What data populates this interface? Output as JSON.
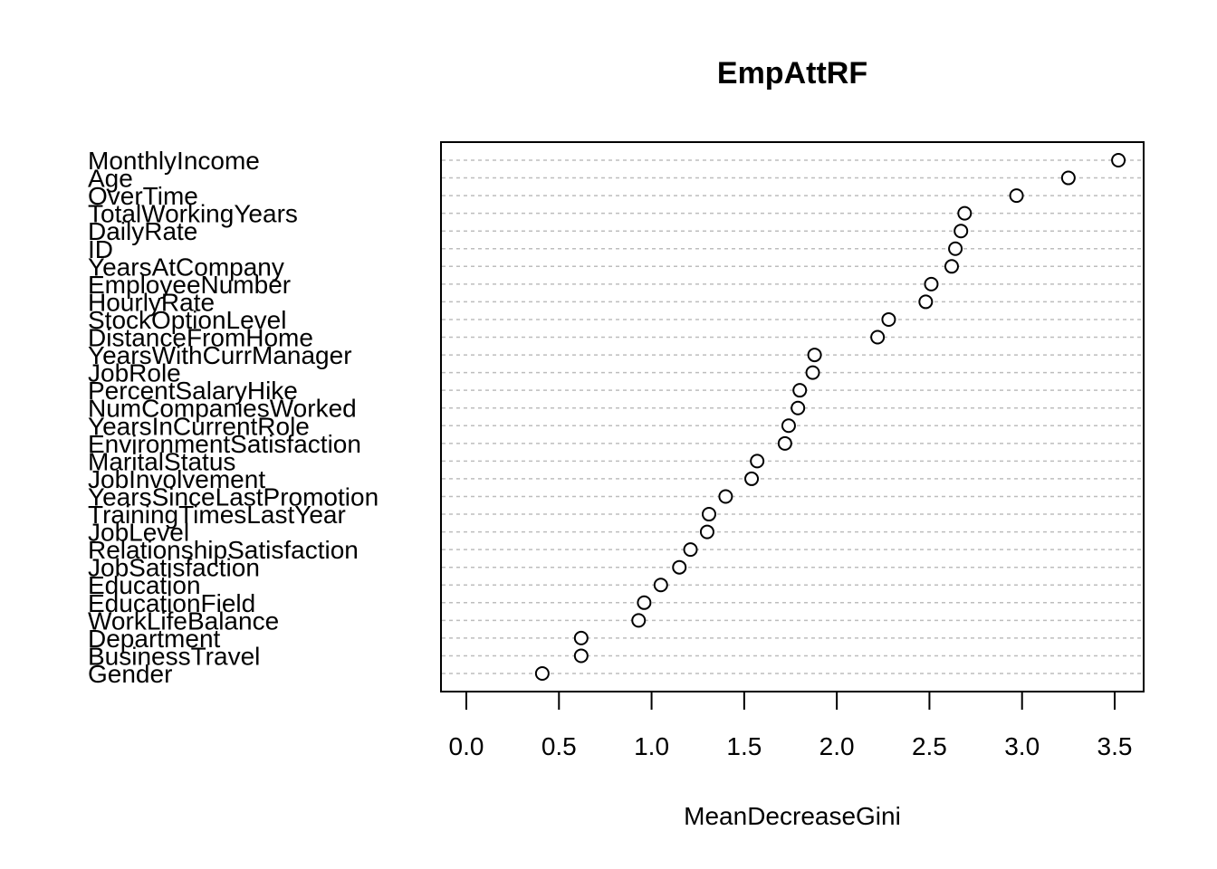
{
  "chart_data": {
    "type": "scatter",
    "title": "EmpAttRF",
    "xlabel": "MeanDecreaseGini",
    "ylabel": "",
    "xlim": [
      0.0,
      3.5
    ],
    "x_ticks": [
      "0.0",
      "0.5",
      "1.0",
      "1.5",
      "2.0",
      "2.5",
      "3.0",
      "3.5"
    ],
    "grid": "horizontal dashed",
    "categories": [
      "MonthlyIncome",
      "Age",
      "OverTime",
      "TotalWorkingYears",
      "DailyRate",
      "ID",
      "YearsAtCompany",
      "EmployeeNumber",
      "HourlyRate",
      "StockOptionLevel",
      "DistanceFromHome",
      "YearsWithCurrManager",
      "JobRole",
      "PercentSalaryHike",
      "NumCompaniesWorked",
      "YearsInCurrentRole",
      "EnvironmentSatisfaction",
      "MaritalStatus",
      "JobInvolvement",
      "YearsSinceLastPromotion",
      "TrainingTimesLastYear",
      "JobLevel",
      "RelationshipSatisfaction",
      "JobSatisfaction",
      "Education",
      "EducationField",
      "WorkLifeBalance",
      "Department",
      "BusinessTravel",
      "Gender"
    ],
    "values": [
      3.52,
      3.25,
      2.97,
      2.69,
      2.67,
      2.64,
      2.62,
      2.51,
      2.48,
      2.28,
      2.22,
      1.88,
      1.87,
      1.8,
      1.79,
      1.74,
      1.72,
      1.57,
      1.54,
      1.4,
      1.31,
      1.3,
      1.21,
      1.15,
      1.05,
      0.96,
      0.93,
      0.62,
      0.62,
      0.41
    ]
  }
}
